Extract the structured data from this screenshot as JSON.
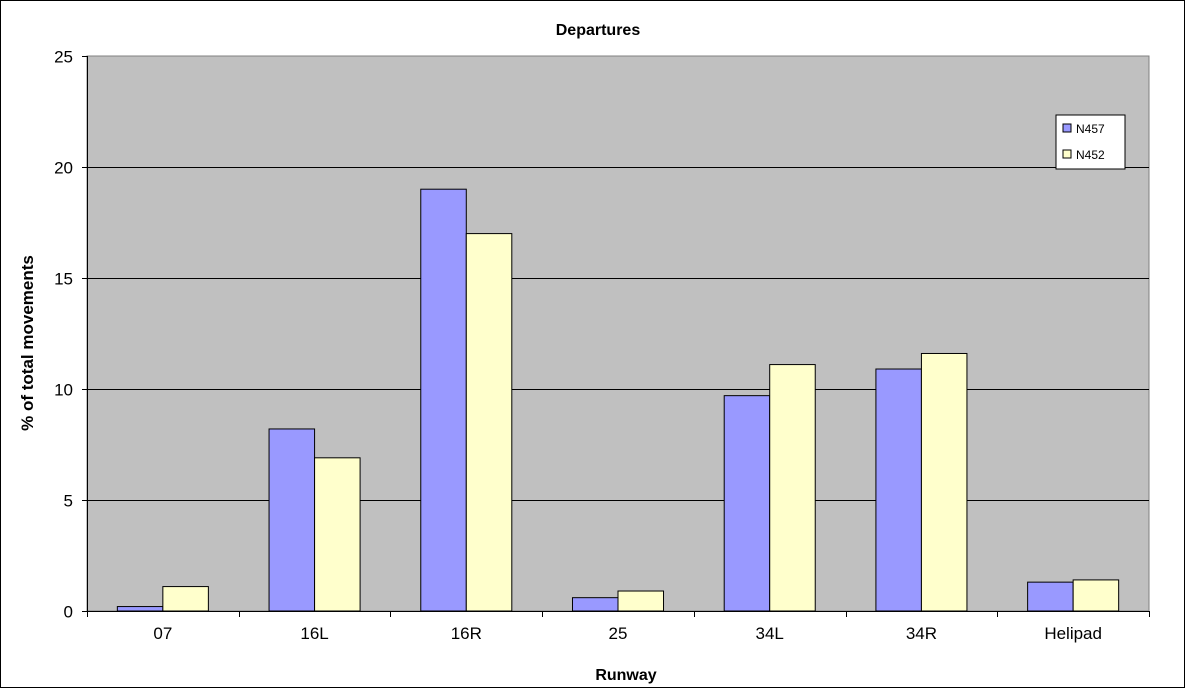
{
  "chart_data": {
    "type": "bar",
    "title": "Departures",
    "xlabel": "Runway",
    "ylabel": "% of total movements",
    "categories": [
      "07",
      "16L",
      "16R",
      "25",
      "34L",
      "34R",
      "Helipad"
    ],
    "series": [
      {
        "name": "N457",
        "color": "#9999ff",
        "values": [
          0.2,
          8.2,
          19.0,
          0.6,
          9.7,
          10.9,
          1.3
        ]
      },
      {
        "name": "N452",
        "color": "#ffffcc",
        "values": [
          1.1,
          6.9,
          17.0,
          0.9,
          11.1,
          11.6,
          1.4
        ]
      }
    ],
    "ylim": [
      0,
      25
    ],
    "yticks": [
      0,
      5,
      10,
      15,
      20,
      25
    ],
    "grid": true,
    "plot_background": "#c0c0c0",
    "legend": "top-right"
  }
}
